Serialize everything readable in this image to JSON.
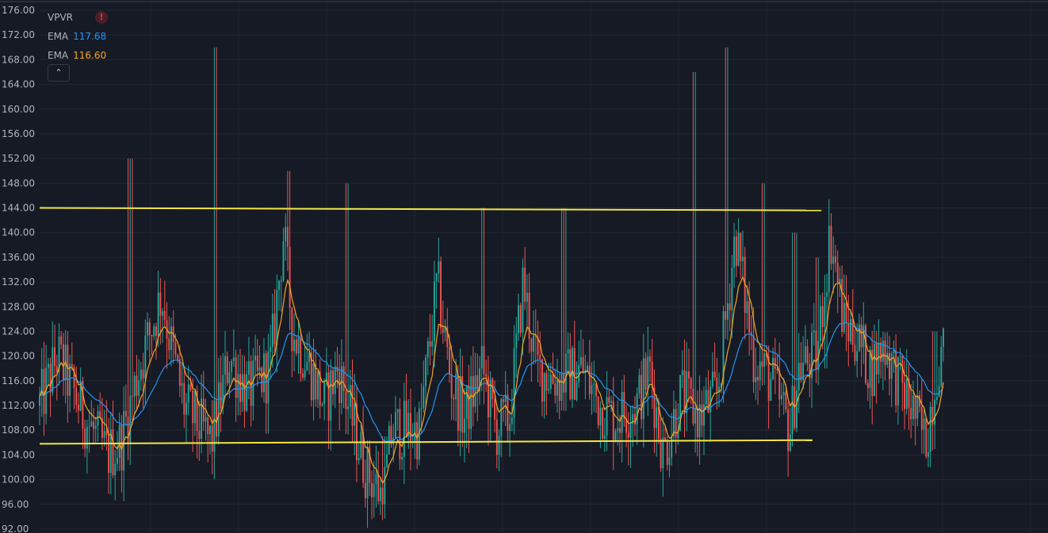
{
  "legend": {
    "vpvr_label": "VPVR",
    "ema1_label": "EMA",
    "ema1_value": "117.68",
    "ema2_label": "EMA",
    "ema2_value": "116.60",
    "warn_icon": "exclamation-icon",
    "collapse_icon": "chevron-up-icon"
  },
  "chart_data": {
    "type": "candlestick",
    "y_ticks": [
      "176.00",
      "172.00",
      "168.00",
      "164.00",
      "160.00",
      "156.00",
      "152.00",
      "148.00",
      "144.00",
      "140.00",
      "136.00",
      "132.00",
      "128.00",
      "124.00",
      "120.00",
      "116.00",
      "112.00",
      "108.00",
      "104.00",
      "100.00",
      "96.00",
      "92.00"
    ],
    "ylim": [
      92,
      176
    ],
    "grid": true,
    "colors": {
      "background": "#161a25",
      "grid": "#232733",
      "up": "#26a69a",
      "down": "#ef5350",
      "ema_fast": "#f5a623",
      "ema_slow": "#2196f3",
      "levels": "#f5e642"
    },
    "horizontal_levels": [
      {
        "from": 0.0,
        "to": 0.83,
        "y_start": 144.0,
        "y_end": 143.6
      },
      {
        "from": 0.0,
        "to": 0.82,
        "y_start": 105.8,
        "y_end": 106.4
      }
    ],
    "anchors": [
      [
        0.0,
        112
      ],
      [
        0.02,
        120
      ],
      [
        0.05,
        110
      ],
      [
        0.075,
        104
      ],
      [
        0.09,
        106
      ],
      [
        0.11,
        118
      ],
      [
        0.135,
        130
      ],
      [
        0.145,
        122
      ],
      [
        0.16,
        112
      ],
      [
        0.19,
        106
      ],
      [
        0.21,
        120
      ],
      [
        0.23,
        114
      ],
      [
        0.255,
        118
      ],
      [
        0.27,
        140
      ],
      [
        0.28,
        124
      ],
      [
        0.3,
        118
      ],
      [
        0.315,
        112
      ],
      [
        0.33,
        118
      ],
      [
        0.345,
        110
      ],
      [
        0.36,
        102
      ],
      [
        0.38,
        97
      ],
      [
        0.39,
        108
      ],
      [
        0.42,
        108
      ],
      [
        0.44,
        132
      ],
      [
        0.455,
        116
      ],
      [
        0.47,
        110
      ],
      [
        0.49,
        118
      ],
      [
        0.505,
        108
      ],
      [
        0.52,
        110
      ],
      [
        0.535,
        132
      ],
      [
        0.55,
        118
      ],
      [
        0.575,
        116
      ],
      [
        0.6,
        118
      ],
      [
        0.62,
        112
      ],
      [
        0.635,
        110
      ],
      [
        0.66,
        112
      ],
      [
        0.675,
        118
      ],
      [
        0.69,
        104
      ],
      [
        0.71,
        114
      ],
      [
        0.73,
        110
      ],
      [
        0.75,
        114
      ],
      [
        0.77,
        140
      ],
      [
        0.79,
        120
      ],
      [
        0.81,
        116
      ],
      [
        0.83,
        108
      ],
      [
        0.84,
        118
      ],
      [
        0.86,
        120
      ],
      [
        0.875,
        140
      ],
      [
        0.89,
        125
      ],
      [
        0.9,
        124
      ],
      [
        0.92,
        118
      ],
      [
        0.935,
        122
      ],
      [
        0.95,
        116
      ],
      [
        0.97,
        110
      ],
      [
        0.98,
        106
      ],
      [
        0.995,
        120
      ],
      [
        1.0,
        120
      ]
    ],
    "spikes": [
      [
        0.1,
        152
      ],
      [
        0.195,
        170
      ],
      [
        0.275,
        150
      ],
      [
        0.34,
        148
      ],
      [
        0.38,
        107
      ],
      [
        0.49,
        144
      ],
      [
        0.58,
        144
      ],
      [
        0.725,
        166
      ],
      [
        0.76,
        170
      ],
      [
        0.8,
        148
      ],
      [
        0.835,
        140
      ],
      [
        0.86,
        136
      ],
      [
        0.87,
        118
      ],
      [
        0.93,
        123
      ],
      [
        0.985,
        102
      ],
      [
        0.99,
        124
      ]
    ]
  }
}
